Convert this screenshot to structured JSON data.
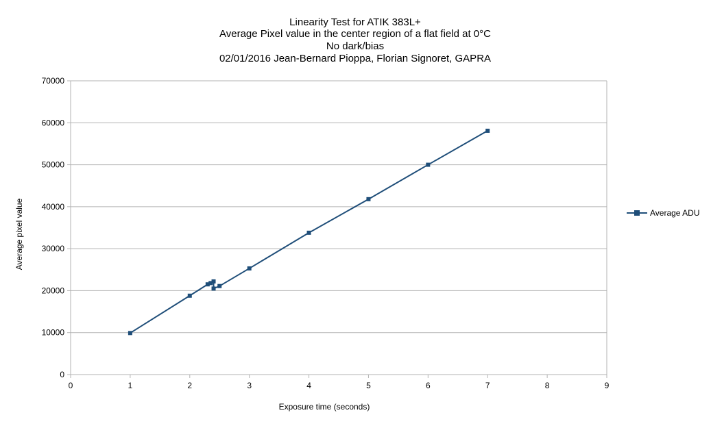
{
  "chart_data": {
    "type": "line",
    "title_lines": [
      "Linearity Test for ATIK 383L+",
      "Average Pixel value in the center region of a flat field at 0°C",
      "No dark/bias",
      "02/01/2016 Jean-Bernard Pioppa, Florian Signoret, GAPRA"
    ],
    "xlabel": "Exposure time (seconds)",
    "ylabel": "Average pixel value",
    "xlim": [
      0,
      9
    ],
    "ylim": [
      0,
      70000
    ],
    "x_ticks": [
      "0",
      "1",
      "2",
      "3",
      "4",
      "5",
      "6",
      "7",
      "8",
      "9"
    ],
    "y_ticks": [
      "0",
      "10000",
      "20000",
      "30000",
      "40000",
      "50000",
      "60000",
      "70000"
    ],
    "grid": "horizontal",
    "legend_position": "right",
    "series": [
      {
        "name": "Average ADU",
        "color": "#1f4e79",
        "marker": "square",
        "points": [
          {
            "x": 1,
            "y": 9900
          },
          {
            "x": 2,
            "y": 18800
          },
          {
            "x": 2.3,
            "y": 21500
          },
          {
            "x": 2.35,
            "y": 21800
          },
          {
            "x": 2.4,
            "y": 22200
          },
          {
            "x": 2.4,
            "y": 20500
          },
          {
            "x": 2.5,
            "y": 21100
          },
          {
            "x": 3,
            "y": 25300
          },
          {
            "x": 4,
            "y": 33800
          },
          {
            "x": 5,
            "y": 41800
          },
          {
            "x": 6,
            "y": 50000
          },
          {
            "x": 7,
            "y": 58100
          }
        ]
      }
    ]
  }
}
